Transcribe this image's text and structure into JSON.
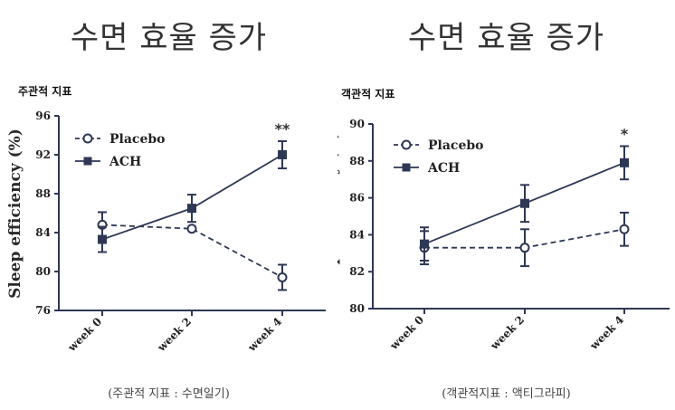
{
  "charts": [
    {
      "title": "수면 효율 증가",
      "subtitle": "주관적 지표",
      "caption": "(주관적 지표 : 수면일기)",
      "significance": "**"
    },
    {
      "title": "수면 효율 증가",
      "subtitle": "객관적 지표",
      "caption": "(객관적지표 : 액티그라피)",
      "significance": "*"
    }
  ],
  "colors": {
    "ink": "#2e3855"
  },
  "chart_data": [
    {
      "type": "line",
      "title": "수면 효율 증가",
      "categories": [
        "week 0",
        "week 2",
        "week 4"
      ],
      "ylabel": "Sleep efficiency (%)",
      "xlabel": "",
      "ylim": [
        76,
        96
      ],
      "yticks": [
        76,
        80,
        84,
        88,
        92,
        96
      ],
      "legend_position": "top-left",
      "series": [
        {
          "name": "Placebo",
          "style": "dashed",
          "marker": "open-circle",
          "values": [
            84.8,
            84.4,
            79.4
          ],
          "errors": [
            1.3,
            0,
            1.3
          ]
        },
        {
          "name": "ACH",
          "style": "solid",
          "marker": "filled-square",
          "values": [
            83.3,
            86.5,
            92.0
          ],
          "errors": [
            1.3,
            1.4,
            1.4
          ]
        }
      ],
      "annotations": [
        {
          "category": "week 4",
          "text": "**"
        }
      ]
    },
    {
      "type": "line",
      "title": "수면 효율 증가",
      "categories": [
        "week 0",
        "week 2",
        "week 4"
      ],
      "ylabel": "Sleep efficiency (%)",
      "xlabel": "",
      "ylim": [
        80,
        90
      ],
      "yticks": [
        80,
        82,
        84,
        86,
        88,
        90
      ],
      "legend_position": "top-left",
      "series": [
        {
          "name": "Placebo",
          "style": "dashed",
          "marker": "open-circle",
          "values": [
            83.3,
            83.3,
            84.3
          ],
          "errors": [
            0.9,
            1.0,
            0.9
          ]
        },
        {
          "name": "ACH",
          "style": "solid",
          "marker": "filled-square",
          "values": [
            83.5,
            85.7,
            87.9
          ],
          "errors": [
            0.9,
            1.0,
            0.9
          ]
        }
      ],
      "annotations": [
        {
          "category": "week 4",
          "text": "*"
        }
      ]
    }
  ]
}
